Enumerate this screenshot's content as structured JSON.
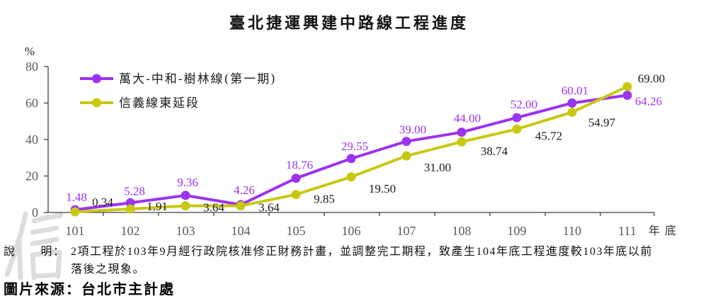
{
  "chart_data": {
    "type": "line",
    "title": "臺北捷運興建中路線工程進度",
    "ylabel": "%",
    "xlabel": "年底",
    "categories": [
      "101",
      "102",
      "103",
      "104",
      "105",
      "106",
      "107",
      "108",
      "109",
      "110",
      "111"
    ],
    "ylim": [
      0,
      80
    ],
    "yticks": [
      0,
      20,
      40,
      60,
      80
    ],
    "grid": false,
    "legend_position": "top-left",
    "series": [
      {
        "name": "萬大-中和-樹林線(第一期)",
        "color": "#9b34ef",
        "label_color": "#9b34ef",
        "values": [
          1.48,
          5.28,
          9.36,
          4.26,
          18.76,
          29.55,
          39.0,
          44.0,
          52.0,
          60.01,
          64.26
        ]
      },
      {
        "name": "信義線東延段",
        "color": "#c8c813",
        "label_color": "#1a1a1a",
        "values": [
          0.34,
          1.91,
          3.64,
          3.64,
          9.85,
          19.5,
          31.0,
          38.74,
          45.72,
          54.97,
          69.0
        ]
      }
    ]
  },
  "note": {
    "label": "說　　明：",
    "lines": [
      "2項工程於103年9月經行政院核准修正財務計畫，並調整完工期程，致產生104年底工程進度較103年底以前",
      "落後之現象。"
    ]
  },
  "source": "圖片來源：台北市主計處"
}
